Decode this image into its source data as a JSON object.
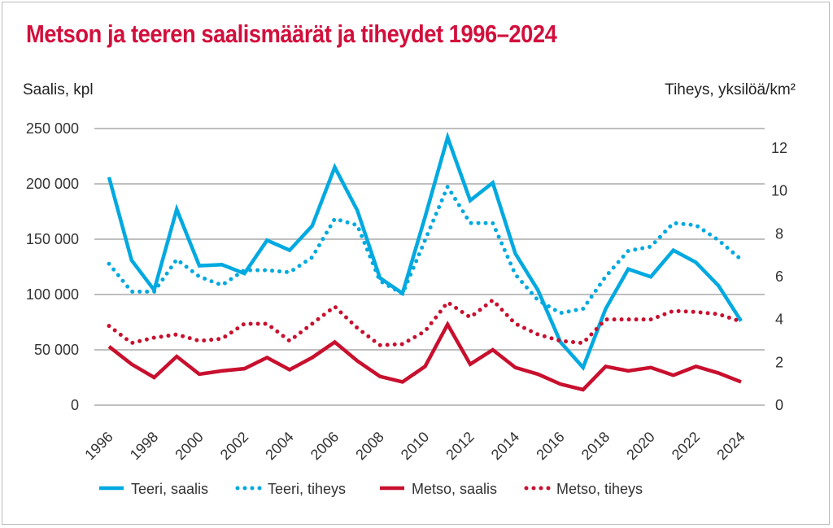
{
  "chart_data": {
    "type": "line",
    "title": "Metson ja teeren saalismäärät ja tiheydet 1996–2024",
    "ylabel": "Saalis, kpl",
    "y2label": "Tiheys, yksilöä/km²",
    "ylim": [
      0,
      250000
    ],
    "y2lim": [
      0,
      12.9
    ],
    "yticks": [
      "0",
      "50 000",
      "100 000",
      "150 000",
      "200 000",
      "250 000"
    ],
    "ytick_values": [
      0,
      50000,
      100000,
      150000,
      200000,
      250000
    ],
    "y2ticks": [
      "0",
      "2",
      "4",
      "6",
      "8",
      "10",
      "12"
    ],
    "xtick_labels": [
      "1996",
      "1998",
      "2000",
      "2002",
      "2004",
      "2006",
      "2008",
      "2010",
      "2012",
      "2014",
      "2016",
      "2018",
      "2020",
      "2022",
      "2024"
    ],
    "x": [
      1996,
      1997,
      1998,
      1999,
      2000,
      2001,
      2002,
      2003,
      2004,
      2005,
      2006,
      2007,
      2008,
      2009,
      2010,
      2011,
      2012,
      2013,
      2014,
      2015,
      2016,
      2017,
      2018,
      2019,
      2020,
      2021,
      2022,
      2023,
      2024
    ],
    "grid": true,
    "legend_position": "bottom",
    "series": [
      {
        "name": "Teeri, saalis",
        "axis": "left",
        "color": "#00a9e0",
        "style": "solid",
        "values": [
          206000,
          131000,
          104000,
          177000,
          126000,
          127000,
          119000,
          149000,
          140000,
          162000,
          215000,
          176000,
          115000,
          101000,
          170000,
          242000,
          185000,
          201000,
          137000,
          104000,
          57000,
          34000,
          87000,
          123000,
          116000,
          140000,
          129000,
          108000,
          76000
        ]
      },
      {
        "name": "Teeri, tiheys",
        "axis": "right",
        "color": "#00a9e0",
        "style": "dotted",
        "values": [
          6.6,
          5.3,
          5.3,
          6.8,
          6.0,
          5.6,
          6.3,
          6.3,
          6.2,
          6.9,
          8.7,
          8.4,
          5.8,
          5.2,
          7.7,
          10.2,
          8.5,
          8.5,
          6.1,
          4.9,
          4.3,
          4.5,
          6.0,
          7.2,
          7.4,
          8.5,
          8.4,
          7.7,
          6.8
        ]
      },
      {
        "name": "Metso, saalis",
        "axis": "left",
        "color": "#c8102e",
        "style": "solid",
        "values": [
          53000,
          37000,
          25000,
          44000,
          28000,
          31000,
          33000,
          43000,
          32000,
          43000,
          57000,
          40000,
          26000,
          21000,
          35000,
          73000,
          37000,
          50000,
          34000,
          28000,
          19000,
          14000,
          35000,
          31000,
          34000,
          27000,
          35000,
          29000,
          21000
        ]
      },
      {
        "name": "Metso, tiheys",
        "axis": "right",
        "color": "#c8102e",
        "style": "dotted",
        "values": [
          3.7,
          2.9,
          3.15,
          3.3,
          3.0,
          3.1,
          3.8,
          3.8,
          3.0,
          3.8,
          4.6,
          3.6,
          2.8,
          2.85,
          3.45,
          4.8,
          4.1,
          4.9,
          3.8,
          3.3,
          3.0,
          2.9,
          4.0,
          4.0,
          4.0,
          4.4,
          4.35,
          4.25,
          3.9
        ]
      }
    ]
  }
}
